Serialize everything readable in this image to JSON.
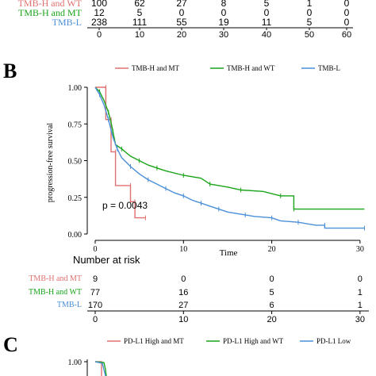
{
  "colors": {
    "mt": "#e07070",
    "wt": "#1aa41a",
    "low": "#4a8fd8",
    "axis": "#000000"
  },
  "top_table": {
    "rows": [
      {
        "label": "TMB-H and WT",
        "color_key": "mt",
        "values": [
          "100",
          "62",
          "27",
          "8",
          "5",
          "1",
          "0"
        ]
      },
      {
        "label": "TMB-H and MT",
        "color_key": "wt",
        "values": [
          "12",
          "5",
          "0",
          "0",
          "0",
          "0",
          "0"
        ]
      },
      {
        "label": "TMB-L",
        "color_key": "low",
        "values": [
          "238",
          "111",
          "55",
          "19",
          "11",
          "5",
          "0"
        ]
      }
    ],
    "ticks": [
      "0",
      "10",
      "20",
      "30",
      "40",
      "50",
      "60"
    ]
  },
  "panel_b": {
    "letter": "B",
    "legend": [
      "TMB-H and MT",
      "TMB-H and WT",
      "TMB-L"
    ],
    "ylabel": "progression-free survival",
    "xlabel": "Time",
    "pvalue": "p = 0.0043",
    "risk_title": "Number at risk",
    "risk_rows": [
      {
        "label": "TMB-H and MT",
        "color_key": "mt",
        "values": [
          "9",
          "0",
          "0",
          "0"
        ]
      },
      {
        "label": "TMB-H and WT",
        "color_key": "wt",
        "values": [
          "77",
          "16",
          "5",
          "1"
        ]
      },
      {
        "label": "TMB-L",
        "color_key": "low",
        "values": [
          "170",
          "27",
          "6",
          "1"
        ]
      }
    ],
    "risk_ticks": [
      "0",
      "10",
      "20",
      "30"
    ]
  },
  "panel_c": {
    "letter": "C",
    "legend": [
      "PD-L1 High and MT",
      "PD-L1 High and WT",
      "PD-L1 Low"
    ],
    "ytick_top": "1.00"
  },
  "chart_data": [
    {
      "type": "line",
      "title": "",
      "xlabel": "Time",
      "ylabel": "progression-free survival",
      "xlim": [
        0,
        31
      ],
      "ylim": [
        0,
        1
      ],
      "xticks": [
        0,
        10,
        20,
        30
      ],
      "yticks": [
        0.0,
        0.25,
        0.5,
        0.75,
        1.0
      ],
      "legend_position": "top",
      "annotation": "p = 0.0043",
      "series": [
        {
          "name": "TMB-H and MT",
          "color_key": "mt",
          "points": [
            [
              0,
              1.0
            ],
            [
              1.2,
              1.0
            ],
            [
              1.2,
              0.78
            ],
            [
              1.8,
              0.78
            ],
            [
              1.8,
              0.56
            ],
            [
              2.3,
              0.56
            ],
            [
              2.3,
              0.33
            ],
            [
              4.0,
              0.33
            ],
            [
              4.0,
              0.22
            ],
            [
              4.5,
              0.22
            ],
            [
              4.5,
              0.11
            ],
            [
              5.7,
              0.11
            ]
          ]
        },
        {
          "name": "TMB-H and WT",
          "color_key": "wt",
          "points": [
            [
              0,
              1.0
            ],
            [
              0.5,
              0.97
            ],
            [
              1.0,
              0.91
            ],
            [
              1.5,
              0.83
            ],
            [
              1.8,
              0.76
            ],
            [
              2.0,
              0.7
            ],
            [
              2.3,
              0.61
            ],
            [
              3.0,
              0.58
            ],
            [
              4.0,
              0.53
            ],
            [
              5.0,
              0.5
            ],
            [
              6.0,
              0.47
            ],
            [
              7.0,
              0.45
            ],
            [
              8.0,
              0.43
            ],
            [
              10.0,
              0.4
            ],
            [
              12.0,
              0.38
            ],
            [
              13.0,
              0.34
            ],
            [
              15.0,
              0.32
            ],
            [
              16.5,
              0.3
            ],
            [
              19.0,
              0.29
            ],
            [
              21.0,
              0.26
            ],
            [
              22.5,
              0.26
            ],
            [
              22.5,
              0.17
            ],
            [
              30.5,
              0.17
            ]
          ]
        },
        {
          "name": "TMB-L",
          "color_key": "low",
          "points": [
            [
              0,
              1.0
            ],
            [
              0.5,
              0.95
            ],
            [
              1.0,
              0.88
            ],
            [
              1.5,
              0.78
            ],
            [
              2.0,
              0.66
            ],
            [
              2.5,
              0.58
            ],
            [
              3.0,
              0.52
            ],
            [
              4.0,
              0.46
            ],
            [
              5.0,
              0.41
            ],
            [
              6.0,
              0.37
            ],
            [
              7.0,
              0.34
            ],
            [
              8.0,
              0.31
            ],
            [
              9.0,
              0.28
            ],
            [
              10.0,
              0.26
            ],
            [
              11.0,
              0.23
            ],
            [
              12.0,
              0.21
            ],
            [
              13.0,
              0.19
            ],
            [
              14.0,
              0.17
            ],
            [
              15.0,
              0.15
            ],
            [
              17.0,
              0.13
            ],
            [
              18.0,
              0.12
            ],
            [
              20.0,
              0.11
            ],
            [
              21.0,
              0.09
            ],
            [
              23.0,
              0.08
            ],
            [
              25.0,
              0.06
            ],
            [
              26.0,
              0.06
            ],
            [
              26.0,
              0.04
            ],
            [
              30.5,
              0.04
            ]
          ]
        }
      ]
    }
  ]
}
